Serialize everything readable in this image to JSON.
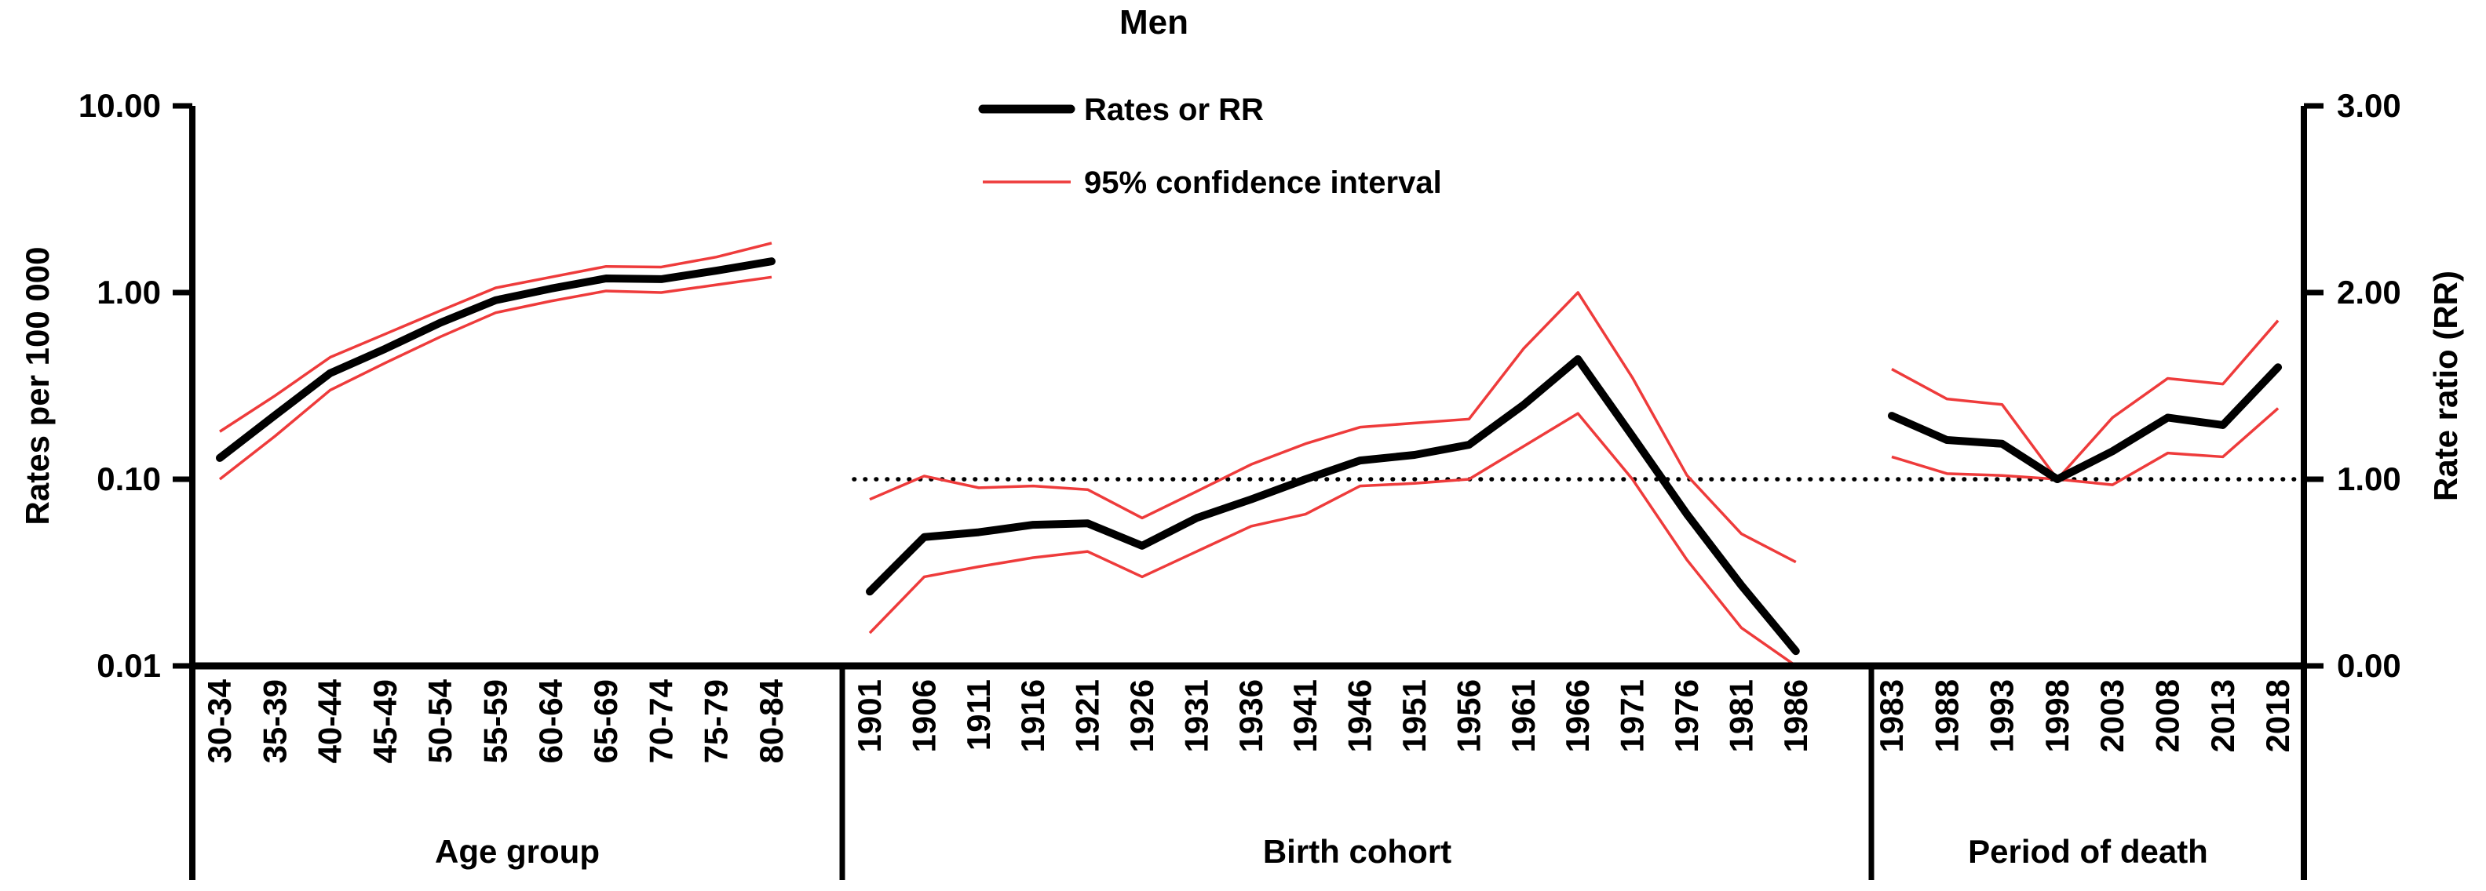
{
  "chart_data": {
    "type": "line",
    "title": "Men",
    "legend": [
      {
        "label": "Rates or RR",
        "color": "#000000",
        "style": "thick"
      },
      {
        "label": "95% confidence interval",
        "color": "#EE3B3B",
        "style": "thin"
      }
    ],
    "colors": {
      "series": "#000000",
      "ci": "#EE3B3B"
    },
    "left_axis": {
      "label": "Rates per 100 000",
      "scale": "log",
      "tick_labels": [
        "10.00",
        "1.00",
        "0.10",
        "0.01"
      ],
      "tick_values": [
        10,
        1,
        0.1,
        0.01
      ]
    },
    "right_axis": {
      "label": "Rate ratio (RR)",
      "scale": "linear",
      "tick_labels": [
        "3.00",
        "2.00",
        "1.00",
        "0.00"
      ],
      "tick_values": [
        3,
        2,
        1,
        0
      ]
    },
    "reference_line": {
      "rr": 1.0,
      "style": "dotted",
      "color": "#000000"
    },
    "panels": [
      {
        "id": "age",
        "xlabel": "Age group",
        "value_axis": "rates",
        "categories": [
          "30-34",
          "35-39",
          "40-44",
          "45-49",
          "50-54",
          "55-59",
          "60-64",
          "65-69",
          "70-74",
          "75-79",
          "80-84"
        ],
        "rate": [
          0.13,
          0.22,
          0.37,
          0.5,
          0.69,
          0.91,
          1.05,
          1.19,
          1.18,
          1.31,
          1.47
        ],
        "ci_low": [
          0.1,
          0.17,
          0.3,
          0.42,
          0.58,
          0.78,
          0.9,
          1.02,
          1.0,
          1.1,
          1.21
        ],
        "ci_high": [
          0.18,
          0.28,
          0.45,
          0.6,
          0.8,
          1.06,
          1.21,
          1.38,
          1.37,
          1.55,
          1.84
        ]
      },
      {
        "id": "cohort",
        "xlabel": "Birth cohort",
        "value_axis": "rates",
        "categories": [
          "1901",
          "1906",
          "1911",
          "1916",
          "1921",
          "1926",
          "1931",
          "1936",
          "1941",
          "1946",
          "1951",
          "1956",
          "1961",
          "1966",
          "1971",
          "1976",
          "1981",
          "1986"
        ],
        "rate": [
          0.025,
          0.049,
          0.052,
          0.057,
          0.058,
          0.044,
          0.062,
          0.078,
          0.1,
          0.126,
          0.135,
          0.153,
          0.25,
          0.44,
          0.17,
          0.065,
          0.027,
          0.012
        ],
        "ci_low": [
          0.015,
          0.03,
          0.034,
          0.038,
          0.041,
          0.03,
          0.041,
          0.056,
          0.065,
          0.092,
          0.095,
          0.1,
          0.15,
          0.225,
          0.1,
          0.037,
          0.016,
          0.008
        ],
        "ci_high": [
          0.078,
          0.104,
          0.09,
          0.092,
          0.088,
          0.062,
          0.086,
          0.12,
          0.155,
          0.19,
          0.2,
          0.21,
          0.5,
          1.0,
          0.35,
          0.105,
          0.051,
          0.036
        ]
      },
      {
        "id": "period",
        "xlabel": "Period of death",
        "value_axis": "rr",
        "categories": [
          "1983",
          "1988",
          "1993",
          "1998",
          "2003",
          "2008",
          "2013",
          "2018"
        ],
        "rr": [
          1.34,
          1.21,
          1.19,
          1.0,
          1.15,
          1.33,
          1.29,
          1.6
        ],
        "ci_low": [
          1.12,
          1.03,
          1.02,
          1.0,
          0.97,
          1.14,
          1.12,
          1.38
        ],
        "ci_high": [
          1.59,
          1.43,
          1.4,
          1.0,
          1.33,
          1.54,
          1.51,
          1.85
        ]
      }
    ],
    "layout_hints": {
      "left_axis_range_log": [
        0.01,
        10
      ],
      "right_axis_range": [
        0,
        3
      ],
      "grid": "off",
      "legend_position": "top-center"
    }
  }
}
